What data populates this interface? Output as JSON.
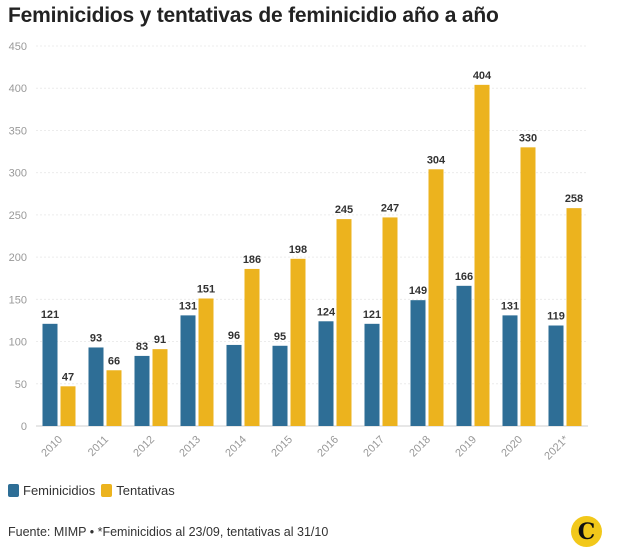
{
  "title": "Feminicidios y tentativas de feminicidio año a año",
  "legend": [
    {
      "label": "Feminicidios",
      "color": "#2e6e96"
    },
    {
      "label": "Tentativas",
      "color": "#ecb31e"
    }
  ],
  "footer": "Fuente: MIMP • *Feminicidios al 23/09, tentativas al 31/10",
  "logo": {
    "glyph": "C",
    "color": "#f2c81a"
  },
  "chart_data": {
    "type": "bar",
    "categories": [
      "2010",
      "2011",
      "2012",
      "2013",
      "2014",
      "2015",
      "2016",
      "2017",
      "2018",
      "2019",
      "2020",
      "2021*"
    ],
    "series": [
      {
        "name": "Feminicidios",
        "color": "#2e6e96",
        "values": [
          121,
          93,
          83,
          131,
          96,
          95,
          124,
          121,
          149,
          166,
          131,
          119
        ]
      },
      {
        "name": "Tentativas",
        "color": "#ecb31e",
        "values": [
          47,
          66,
          91,
          151,
          186,
          198,
          245,
          247,
          304,
          404,
          330,
          258
        ]
      }
    ],
    "ylim": [
      0,
      450
    ],
    "yticks": [
      0,
      50,
      100,
      150,
      200,
      250,
      300,
      350,
      400,
      450
    ],
    "grid": true,
    "data_labels": true
  }
}
